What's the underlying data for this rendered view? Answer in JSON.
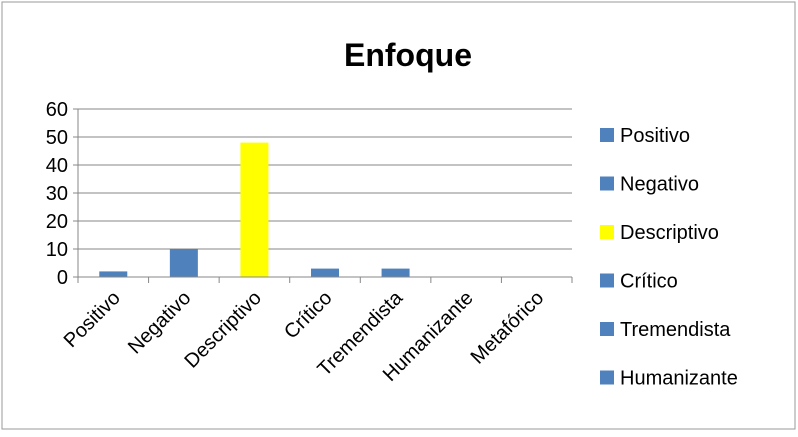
{
  "chart_data": {
    "type": "bar",
    "title": "Enfoque",
    "xlabel": "",
    "ylabel": "",
    "categories": [
      "Positivo",
      "Negativo",
      "Descriptivo",
      "Crítico",
      "Tremendista",
      "Humanizante",
      "Metafórico"
    ],
    "values": [
      2,
      10,
      48,
      3,
      3,
      0,
      0
    ],
    "bar_colors": [
      "#4f81bd",
      "#4f81bd",
      "#ffff00",
      "#4f81bd",
      "#4f81bd",
      "#4f81bd",
      "#4f81bd"
    ],
    "ylim": [
      0,
      60
    ],
    "yticks": [
      0,
      10,
      20,
      30,
      40,
      50,
      60
    ],
    "grid": true,
    "legend_position": "right",
    "legend": [
      {
        "label": "Positivo",
        "color": "#4f81bd"
      },
      {
        "label": "Negativo",
        "color": "#4f81bd"
      },
      {
        "label": "Descriptivo",
        "color": "#ffff00"
      },
      {
        "label": "Crítico",
        "color": "#4f81bd"
      },
      {
        "label": "Tremendista",
        "color": "#4f81bd"
      },
      {
        "label": "Humanizante",
        "color": "#4f81bd"
      }
    ]
  }
}
